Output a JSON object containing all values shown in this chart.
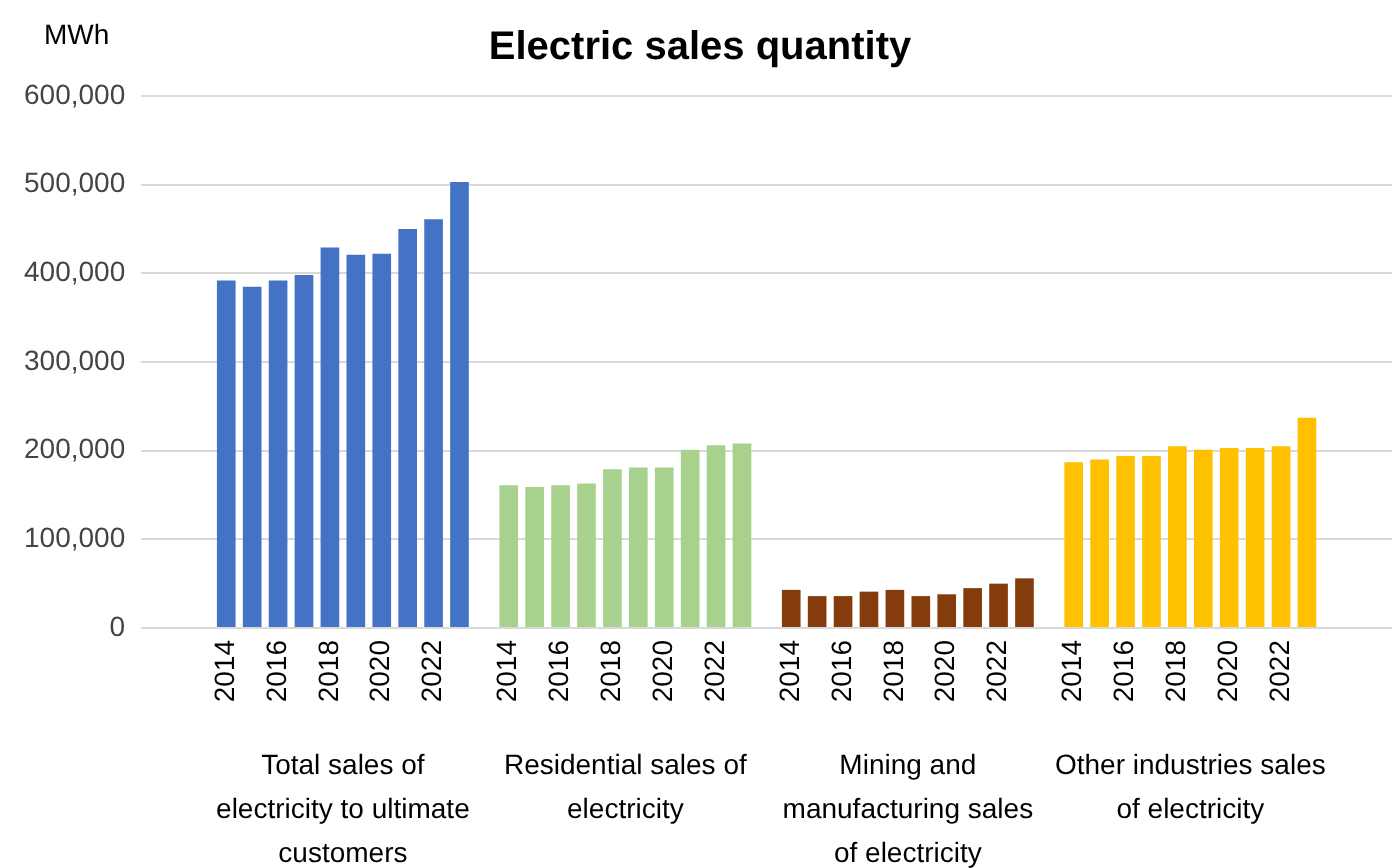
{
  "chart_data": {
    "type": "bar",
    "title": "Electric sales quantity",
    "ylabel": "MWh",
    "categories": [
      "2014",
      null,
      "2016",
      null,
      "2018",
      null,
      "2020",
      null,
      "2022",
      null,
      "2014",
      null,
      "2016",
      null,
      "2018",
      null,
      "2020",
      null,
      "2022",
      null,
      "2014",
      null,
      "2016",
      null,
      "2018",
      null,
      "2020",
      null,
      "2022",
      null,
      "2014",
      null,
      "2016",
      null,
      "2018",
      null,
      "2020",
      null,
      "2022",
      null
    ],
    "values": [
      392000,
      385000,
      392000,
      398000,
      429000,
      421000,
      422000,
      450000,
      461000,
      503000,
      161000,
      159000,
      161000,
      163000,
      179000,
      181000,
      181000,
      201000,
      206000,
      208000,
      43000,
      36000,
      36000,
      41000,
      43000,
      36000,
      38000,
      45000,
      50000,
      56000,
      187000,
      190000,
      194000,
      194000,
      205000,
      201000,
      203000,
      203000,
      205000,
      237000
    ],
    "colors": [
      "#4472c4",
      "#4472c4",
      "#4472c4",
      "#4472c4",
      "#4472c4",
      "#4472c4",
      "#4472c4",
      "#4472c4",
      "#4472c4",
      "#4472c4",
      "#a9d18e",
      "#a9d18e",
      "#a9d18e",
      "#a9d18e",
      "#a9d18e",
      "#a9d18e",
      "#a9d18e",
      "#a9d18e",
      "#a9d18e",
      "#a9d18e",
      "#843c0c",
      "#843c0c",
      "#843c0c",
      "#843c0c",
      "#843c0c",
      "#843c0c",
      "#843c0c",
      "#843c0c",
      "#843c0c",
      "#843c0c",
      "#ffc000",
      "#ffc000",
      "#ffc000",
      "#ffc000",
      "#ffc000",
      "#ffc000",
      "#ffc000",
      "#ffc000",
      "#ffc000",
      "#ffc000"
    ],
    "annotations": [
      "Total sales of electricity to ultimate customers",
      "Residential sales of electricity",
      "Mining and manufacturing sales of electricity",
      "Other industries sales of electricity"
    ],
    "ylim": [
      0,
      600000
    ],
    "yticks": [
      0,
      {
        "value": 100000,
        "label": "100,000"
      },
      {
        "value": 200000,
        "label": "200,000"
      },
      {
        "value": 300000,
        "label": "300,000"
      },
      {
        "value": 400000,
        "label": "400,000"
      },
      {
        "value": 500000,
        "label": "500,000"
      },
      {
        "value": 600000,
        "label": "600,000"
      }
    ],
    "grid": "y",
    "legend": false
  }
}
